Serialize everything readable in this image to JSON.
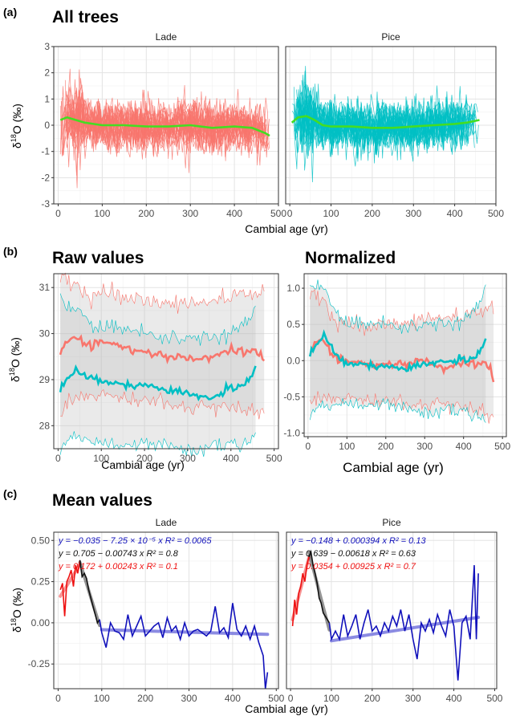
{
  "labels": {
    "a": "(a)",
    "b": "(b)",
    "c": "(c)",
    "title_a": "All trees",
    "title_b_raw": "Raw values",
    "title_b_norm": "Normalized",
    "title_c": "Mean values",
    "xlabel": "Cambial age (yr)",
    "ylabel_a": "δ18O (‰)",
    "ylabel_b": "δ18O (‰)",
    "ylabel_c": "δ18O (‰)"
  },
  "colors": {
    "lade": "#f8766d",
    "pice": "#00bfc4",
    "mean_green": "#44dd22",
    "juvenile_red": "#ee1111",
    "transition_black": "#111111",
    "mature_blue": "#1111bb",
    "fit_blue": "#7777dd",
    "band_gray": "#bdbdbd"
  },
  "chart_data": [
    {
      "id": "a",
      "type": "line",
      "title": "All trees",
      "facets": [
        "Lade",
        "Pice"
      ],
      "xlabel": "Cambial age (yr)",
      "ylabel": "δ18O (‰)",
      "xlim": [
        -10,
        500
      ],
      "ylim": [
        -3,
        3
      ],
      "xticks": [
        0,
        100,
        200,
        300,
        400,
        500
      ],
      "yticks": [
        -3,
        -2,
        -1,
        0,
        1,
        2,
        3
      ],
      "grid": true,
      "series": [
        {
          "facet": "Lade",
          "color": "lade",
          "kind": "individual trees",
          "x_range": [
            5,
            480
          ],
          "spread_sd": 0.45,
          "range": [
            -2.4,
            2.7
          ]
        },
        {
          "facet": "Lade",
          "color": "mean_green",
          "kind": "mean",
          "x": [
            5,
            20,
            40,
            60,
            80,
            100,
            150,
            200,
            250,
            300,
            350,
            400,
            440,
            470,
            480
          ],
          "y": [
            0.2,
            0.3,
            0.2,
            0.1,
            0.05,
            0.0,
            0.0,
            -0.05,
            -0.05,
            0.0,
            -0.1,
            -0.05,
            -0.1,
            -0.3,
            -0.4
          ]
        },
        {
          "facet": "Pice",
          "color": "pice",
          "kind": "individual trees",
          "x_range": [
            5,
            460
          ],
          "spread_sd": 0.45,
          "range": [
            -2.8,
            2.4
          ]
        },
        {
          "facet": "Pice",
          "color": "mean_green",
          "kind": "mean",
          "x": [
            5,
            20,
            40,
            60,
            80,
            100,
            150,
            200,
            250,
            300,
            350,
            400,
            430,
            460
          ],
          "y": [
            0.1,
            0.3,
            0.35,
            0.2,
            0.0,
            -0.05,
            -0.05,
            -0.1,
            -0.1,
            -0.05,
            0.0,
            0.05,
            0.1,
            0.2
          ]
        }
      ]
    },
    {
      "id": "b_raw",
      "type": "area",
      "title": "Raw values",
      "xlabel": "Cambial age (yr)",
      "ylabel": "δ18O (‰)",
      "xlim": [
        -10,
        510
      ],
      "ylim": [
        27.5,
        31.3
      ],
      "xticks": [
        0,
        100,
        200,
        300,
        400,
        500
      ],
      "yticks": [
        28,
        29,
        30,
        31
      ],
      "grid": true,
      "series": [
        {
          "name": "Lade",
          "color": "lade",
          "x": [
            5,
            20,
            40,
            60,
            80,
            100,
            150,
            200,
            250,
            300,
            350,
            400,
            450,
            470,
            480
          ],
          "mean": [
            29.6,
            29.8,
            29.95,
            29.8,
            29.7,
            29.85,
            29.7,
            29.6,
            29.5,
            29.45,
            29.5,
            29.6,
            29.6,
            29.55,
            29.4
          ],
          "upper": [
            31.2,
            31.25,
            31.0,
            30.9,
            30.8,
            30.9,
            30.8,
            30.7,
            30.65,
            30.6,
            30.7,
            30.8,
            30.9,
            30.9,
            30.8
          ],
          "lower": [
            28.2,
            28.4,
            28.6,
            28.7,
            28.6,
            28.7,
            28.6,
            28.55,
            28.5,
            28.4,
            28.4,
            28.4,
            28.3,
            28.3,
            28.2
          ]
        },
        {
          "name": "Pice",
          "color": "pice",
          "x": [
            5,
            20,
            40,
            60,
            80,
            100,
            150,
            200,
            250,
            300,
            350,
            400,
            430,
            450,
            460
          ],
          "mean": [
            28.8,
            29.0,
            29.2,
            29.1,
            29.0,
            28.95,
            28.9,
            28.85,
            28.8,
            28.7,
            28.6,
            28.8,
            28.9,
            29.1,
            29.3
          ],
          "upper": [
            30.8,
            30.6,
            30.5,
            30.3,
            30.1,
            30.2,
            30.1,
            30.0,
            29.9,
            29.9,
            29.9,
            30.0,
            30.2,
            30.4,
            30.5
          ],
          "lower": [
            27.4,
            27.6,
            27.8,
            27.8,
            27.7,
            27.7,
            27.6,
            27.6,
            27.6,
            27.5,
            27.5,
            27.6,
            27.6,
            27.7,
            27.8
          ]
        }
      ]
    },
    {
      "id": "b_norm",
      "type": "area",
      "title": "Normalized",
      "xlabel": "Cambial age (yr)",
      "xlim": [
        -10,
        510
      ],
      "ylim": [
        -1.05,
        1.2
      ],
      "xticks": [
        0,
        100,
        200,
        300,
        400,
        500
      ],
      "yticks": [
        -1.0,
        -0.5,
        0.0,
        0.5,
        1.0
      ],
      "grid": true,
      "series": [
        {
          "name": "Lade",
          "color": "lade",
          "x": [
            5,
            20,
            40,
            60,
            80,
            100,
            150,
            200,
            250,
            300,
            350,
            400,
            450,
            470,
            480
          ],
          "mean": [
            0.1,
            0.25,
            0.3,
            0.1,
            0.0,
            0.0,
            -0.05,
            -0.05,
            -0.05,
            0.0,
            -0.1,
            -0.05,
            -0.05,
            -0.1,
            -0.35
          ],
          "upper": [
            0.9,
            0.95,
            0.8,
            0.6,
            0.55,
            0.5,
            0.45,
            0.5,
            0.5,
            0.55,
            0.6,
            0.6,
            0.7,
            0.8,
            0.5
          ],
          "lower": [
            -0.55,
            -0.6,
            -0.5,
            -0.5,
            -0.55,
            -0.5,
            -0.55,
            -0.55,
            -0.6,
            -0.6,
            -0.6,
            -0.65,
            -0.7,
            -0.8,
            -0.8
          ]
        },
        {
          "name": "Pice",
          "color": "pice",
          "x": [
            5,
            20,
            40,
            60,
            80,
            100,
            150,
            200,
            250,
            300,
            350,
            400,
            430,
            450,
            460
          ],
          "mean": [
            0.1,
            0.2,
            0.35,
            0.2,
            0.0,
            -0.05,
            -0.05,
            -0.1,
            -0.1,
            -0.05,
            0.0,
            0.0,
            0.05,
            0.2,
            0.3
          ],
          "upper": [
            1.0,
            1.05,
            1.0,
            0.7,
            0.6,
            0.55,
            0.5,
            0.5,
            0.45,
            0.5,
            0.5,
            0.55,
            0.7,
            0.9,
            1.0
          ],
          "lower": [
            -0.8,
            -0.7,
            -0.6,
            -0.6,
            -0.55,
            -0.55,
            -0.6,
            -0.6,
            -0.65,
            -0.7,
            -0.7,
            -0.7,
            -0.75,
            -0.8,
            -0.95
          ]
        }
      ]
    },
    {
      "id": "c",
      "type": "line",
      "title": "Mean values",
      "facets": [
        "Lade",
        "Pice"
      ],
      "xlabel": "Cambial age (yr)",
      "ylabel": "δ18O (‰)",
      "xlim": [
        -10,
        505
      ],
      "ylim": [
        -0.4,
        0.55
      ],
      "xticks": [
        0,
        100,
        200,
        300,
        400,
        500
      ],
      "yticks": [
        -0.25,
        0.0,
        0.25,
        0.5
      ],
      "grid": true,
      "panels": [
        {
          "facet": "Lade",
          "equations": [
            {
              "text": "y = −0.035 − 7.25 × 10⁻⁵ x   R² = 0.0065",
              "color": "mature_blue"
            },
            {
              "text": "y = 0.705 − 0.00743 x   R² = 0.8",
              "color": "transition_black"
            },
            {
              "text": "y = 0.172 + 0.00243 x   R² = 0.1",
              "color": "juvenile_red"
            }
          ],
          "segments": [
            {
              "color": "juvenile_red",
              "x": [
                5,
                10,
                15,
                20,
                25,
                30,
                35,
                40,
                45,
                50
              ],
              "y": [
                0.2,
                0.24,
                0.04,
                0.25,
                0.28,
                0.32,
                0.22,
                0.35,
                0.3,
                0.38
              ]
            },
            {
              "color": "transition_black",
              "x": [
                50,
                55,
                60,
                65,
                70,
                75,
                80,
                85,
                90,
                95
              ],
              "y": [
                0.38,
                0.28,
                0.3,
                0.27,
                0.2,
                0.15,
                0.1,
                0.05,
                0.0,
                0.02
              ]
            },
            {
              "color": "mature_blue",
              "x": [
                95,
                100,
                110,
                120,
                130,
                140,
                150,
                160,
                170,
                180,
                190,
                200,
                210,
                220,
                230,
                240,
                250,
                260,
                270,
                280,
                290,
                300,
                310,
                320,
                330,
                340,
                350,
                360,
                370,
                380,
                390,
                400,
                410,
                420,
                430,
                440,
                450,
                460,
                470,
                475,
                480
              ],
              "y": [
                0.02,
                -0.06,
                -0.15,
                0.0,
                -0.05,
                -0.06,
                -0.1,
                0.05,
                -0.08,
                -0.02,
                0.04,
                -0.08,
                -0.05,
                -0.02,
                0.0,
                -0.09,
                0.03,
                -0.05,
                -0.02,
                -0.1,
                0.0,
                -0.08,
                -0.05,
                -0.04,
                -0.06,
                -0.08,
                -0.05,
                0.1,
                -0.06,
                -0.03,
                -0.09,
                0.12,
                -0.04,
                -0.08,
                -0.02,
                -0.1,
                -0.02,
                -0.12,
                -0.2,
                -0.4,
                -0.3
              ]
            }
          ],
          "fit": {
            "color": "fit_blue",
            "x": [
              100,
              480
            ],
            "y": [
              -0.042,
              -0.07
            ]
          }
        },
        {
          "facet": "Pice",
          "equations": [
            {
              "text": "y = −0.148 + 0.000394 x   R² = 0.13",
              "color": "mature_blue"
            },
            {
              "text": "y = 0.639 − 0.00618 x   R² = 0.63",
              "color": "transition_black"
            },
            {
              "text": "y = 0.0354 + 0.00925 x   R² = 0.7",
              "color": "juvenile_red"
            }
          ],
          "segments": [
            {
              "color": "juvenile_red",
              "x": [
                5,
                10,
                15,
                20,
                25,
                30,
                35,
                40,
                45
              ],
              "y": [
                -0.02,
                0.14,
                0.05,
                0.18,
                0.22,
                0.3,
                0.25,
                0.35,
                0.4
              ]
            },
            {
              "color": "transition_black",
              "x": [
                45,
                50,
                55,
                60,
                65,
                70,
                75,
                80,
                85,
                90,
                95
              ],
              "y": [
                0.4,
                0.43,
                0.35,
                0.3,
                0.24,
                0.15,
                0.12,
                0.06,
                0.04,
                0.02,
                0.0
              ]
            },
            {
              "color": "mature_blue",
              "x": [
                95,
                100,
                110,
                120,
                130,
                140,
                150,
                160,
                170,
                180,
                190,
                200,
                210,
                220,
                230,
                240,
                250,
                260,
                270,
                280,
                290,
                300,
                310,
                320,
                330,
                340,
                350,
                360,
                370,
                380,
                390,
                400,
                410,
                420,
                430,
                440,
                450,
                455,
                460
              ],
              "y": [
                0.0,
                -0.1,
                -0.05,
                -0.1,
                0.05,
                -0.08,
                -0.02,
                0.05,
                -0.1,
                0.0,
                0.08,
                -0.05,
                -0.02,
                -0.08,
                0.0,
                -0.05,
                0.04,
                -0.02,
                0.08,
                -0.05,
                0.05,
                -0.1,
                -0.22,
                0.0,
                -0.05,
                0.02,
                -0.06,
                0.05,
                -0.02,
                -0.08,
                0.08,
                -0.02,
                -0.35,
                0.0,
                0.04,
                -0.1,
                0.35,
                -0.1,
                0.3
              ]
            }
          ],
          "fit": {
            "color": "fit_blue",
            "x": [
              100,
              460
            ],
            "y": [
              -0.109,
              0.033
            ]
          }
        }
      ]
    }
  ]
}
